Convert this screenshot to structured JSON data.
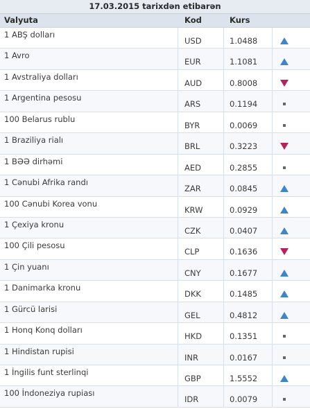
{
  "table": {
    "title": "17.03.2015 tarixdən etibarən",
    "headers": {
      "currency": "Valyuta",
      "code": "Kod",
      "rate": "Kurs"
    },
    "rows": [
      {
        "name": "1 ABŞ dolları",
        "code": "USD",
        "rate": "1.0488",
        "trend": "up"
      },
      {
        "name": "1 Avro",
        "code": "EUR",
        "rate": "1.1081",
        "trend": "up"
      },
      {
        "name": "1 Avstraliya dolları",
        "code": "AUD",
        "rate": "0.8008",
        "trend": "down"
      },
      {
        "name": "1 Argentina pesosu",
        "code": "ARS",
        "rate": "0.1194",
        "trend": "flat"
      },
      {
        "name": "100 Belarus rublu",
        "code": "BYR",
        "rate": "0.0069",
        "trend": "flat"
      },
      {
        "name": "1 Braziliya rialı",
        "code": "BRL",
        "rate": "0.3223",
        "trend": "down"
      },
      {
        "name": "1 BƏƏ dirhəmi",
        "code": "AED",
        "rate": "0.2855",
        "trend": "flat"
      },
      {
        "name": "1 Cənubi Afrika randı",
        "code": "ZAR",
        "rate": "0.0845",
        "trend": "up"
      },
      {
        "name": "100 Cənubi Korea vonu",
        "code": "KRW",
        "rate": "0.0929",
        "trend": "up"
      },
      {
        "name": "1 Çexiya kronu",
        "code": "CZK",
        "rate": "0.0407",
        "trend": "up"
      },
      {
        "name": "100 Çili pesosu",
        "code": "CLP",
        "rate": "0.1636",
        "trend": "down"
      },
      {
        "name": "1 Çin yuanı",
        "code": "CNY",
        "rate": "0.1677",
        "trend": "up"
      },
      {
        "name": "1 Danimarka kronu",
        "code": "DKK",
        "rate": "0.1485",
        "trend": "up"
      },
      {
        "name": "1 Gürcü larisi",
        "code": "GEL",
        "rate": "0.4812",
        "trend": "up"
      },
      {
        "name": "1 Honq Konq dolları",
        "code": "HKD",
        "rate": "0.1351",
        "trend": "flat"
      },
      {
        "name": "1 Hindistan rupisi",
        "code": "INR",
        "rate": "0.0167",
        "trend": "flat"
      },
      {
        "name": "1 İngilis funt sterlinqi",
        "code": "GBP",
        "rate": "1.5552",
        "trend": "up"
      },
      {
        "name": "100 İndoneziya rupiası",
        "code": "IDR",
        "rate": "0.0079",
        "trend": "flat"
      }
    ]
  },
  "trend_icons": {
    "up": "triangle-up-icon",
    "down": "triangle-down-icon",
    "flat": "square-dot-icon"
  },
  "colors": {
    "up": "#3f86c8",
    "down": "#b3215f",
    "flat": "#666666",
    "header_bg": "#dce3ec",
    "title_bg": "#e7ecf3"
  }
}
